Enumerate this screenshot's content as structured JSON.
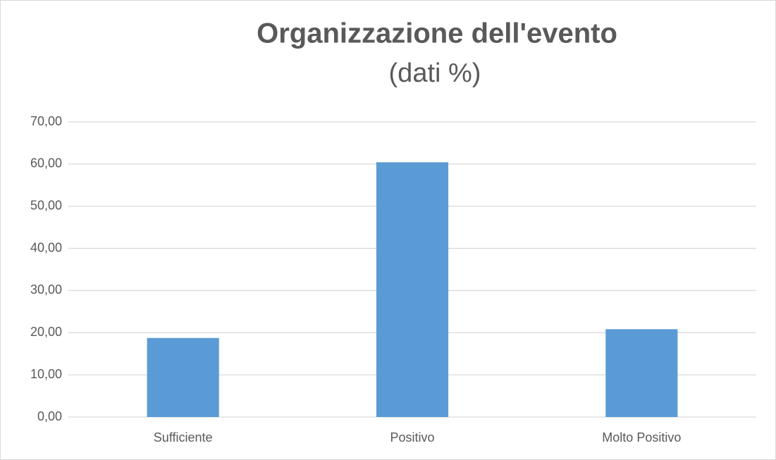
{
  "chart_data": {
    "type": "bar",
    "title": "Organizzazione dell'evento",
    "subtitle": "(dati %)",
    "categories": [
      "Sufficiente",
      "Positivo",
      "Molto Positivo"
    ],
    "values": [
      18.75,
      60.42,
      20.83
    ],
    "color": "#5b9bd5",
    "ylim": [
      0,
      70
    ],
    "yticks": [
      {
        "value": 0,
        "label": "0,00"
      },
      {
        "value": 10,
        "label": "10,00"
      },
      {
        "value": 20,
        "label": "20,00"
      },
      {
        "value": 30,
        "label": "30,00"
      },
      {
        "value": 40,
        "label": "40,00"
      },
      {
        "value": 50,
        "label": "50,00"
      },
      {
        "value": 60,
        "label": "60,00"
      },
      {
        "value": 70,
        "label": "70,00"
      }
    ],
    "grid": true
  }
}
